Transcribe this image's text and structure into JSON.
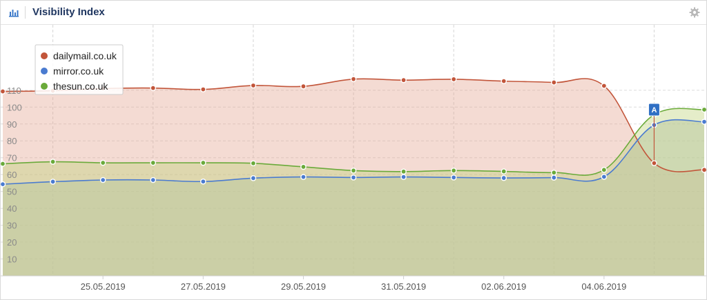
{
  "header": {
    "title": "Visibility Index",
    "chart_icon": "bar-chart-icon",
    "settings_icon": "gear-icon"
  },
  "colors": {
    "dailymail": "#c2553a",
    "mirror": "#4a7bd0",
    "thesun": "#6aaa3a",
    "marker_badge": "#2f6fc4"
  },
  "annotation": {
    "label": "A",
    "date": "05.06.2019"
  },
  "chart_data": {
    "type": "area",
    "title": "Visibility Index",
    "xlabel": "",
    "ylabel": "",
    "ylim": [
      0,
      120
    ],
    "yticks": [
      10,
      20,
      30,
      40,
      50,
      60,
      70,
      80,
      90,
      100,
      110
    ],
    "x": [
      "23.05.2019",
      "24.05.2019",
      "25.05.2019",
      "26.05.2019",
      "27.05.2019",
      "28.05.2019",
      "29.05.2019",
      "30.05.2019",
      "31.05.2019",
      "01.06.2019",
      "02.06.2019",
      "03.06.2019",
      "04.06.2019",
      "05.06.2019",
      "06.06.2019"
    ],
    "xtick_labels": [
      "25.05.2019",
      "27.05.2019",
      "29.05.2019",
      "31.05.2019",
      "02.06.2019",
      "04.06.2019"
    ],
    "grid": true,
    "legend_position": "top-left",
    "series": [
      {
        "name": "dailymail.co.uk",
        "values": [
          109.3,
          109.7,
          111.0,
          111.3,
          110.5,
          112.8,
          112.3,
          116.6,
          116.0,
          116.5,
          115.4,
          114.6,
          112.6,
          66.8,
          62.8
        ]
      },
      {
        "name": "mirror.co.uk",
        "values": [
          54.3,
          55.8,
          56.8,
          56.8,
          55.9,
          57.9,
          58.6,
          58.3,
          58.6,
          58.3,
          58.0,
          58.2,
          58.7,
          89.4,
          91.3
        ]
      },
      {
        "name": "thesun.co.uk",
        "values": [
          66.4,
          67.6,
          67.0,
          67.0,
          67.0,
          66.7,
          64.6,
          62.4,
          61.8,
          62.4,
          61.9,
          61.2,
          62.8,
          95.5,
          98.5
        ]
      }
    ]
  }
}
